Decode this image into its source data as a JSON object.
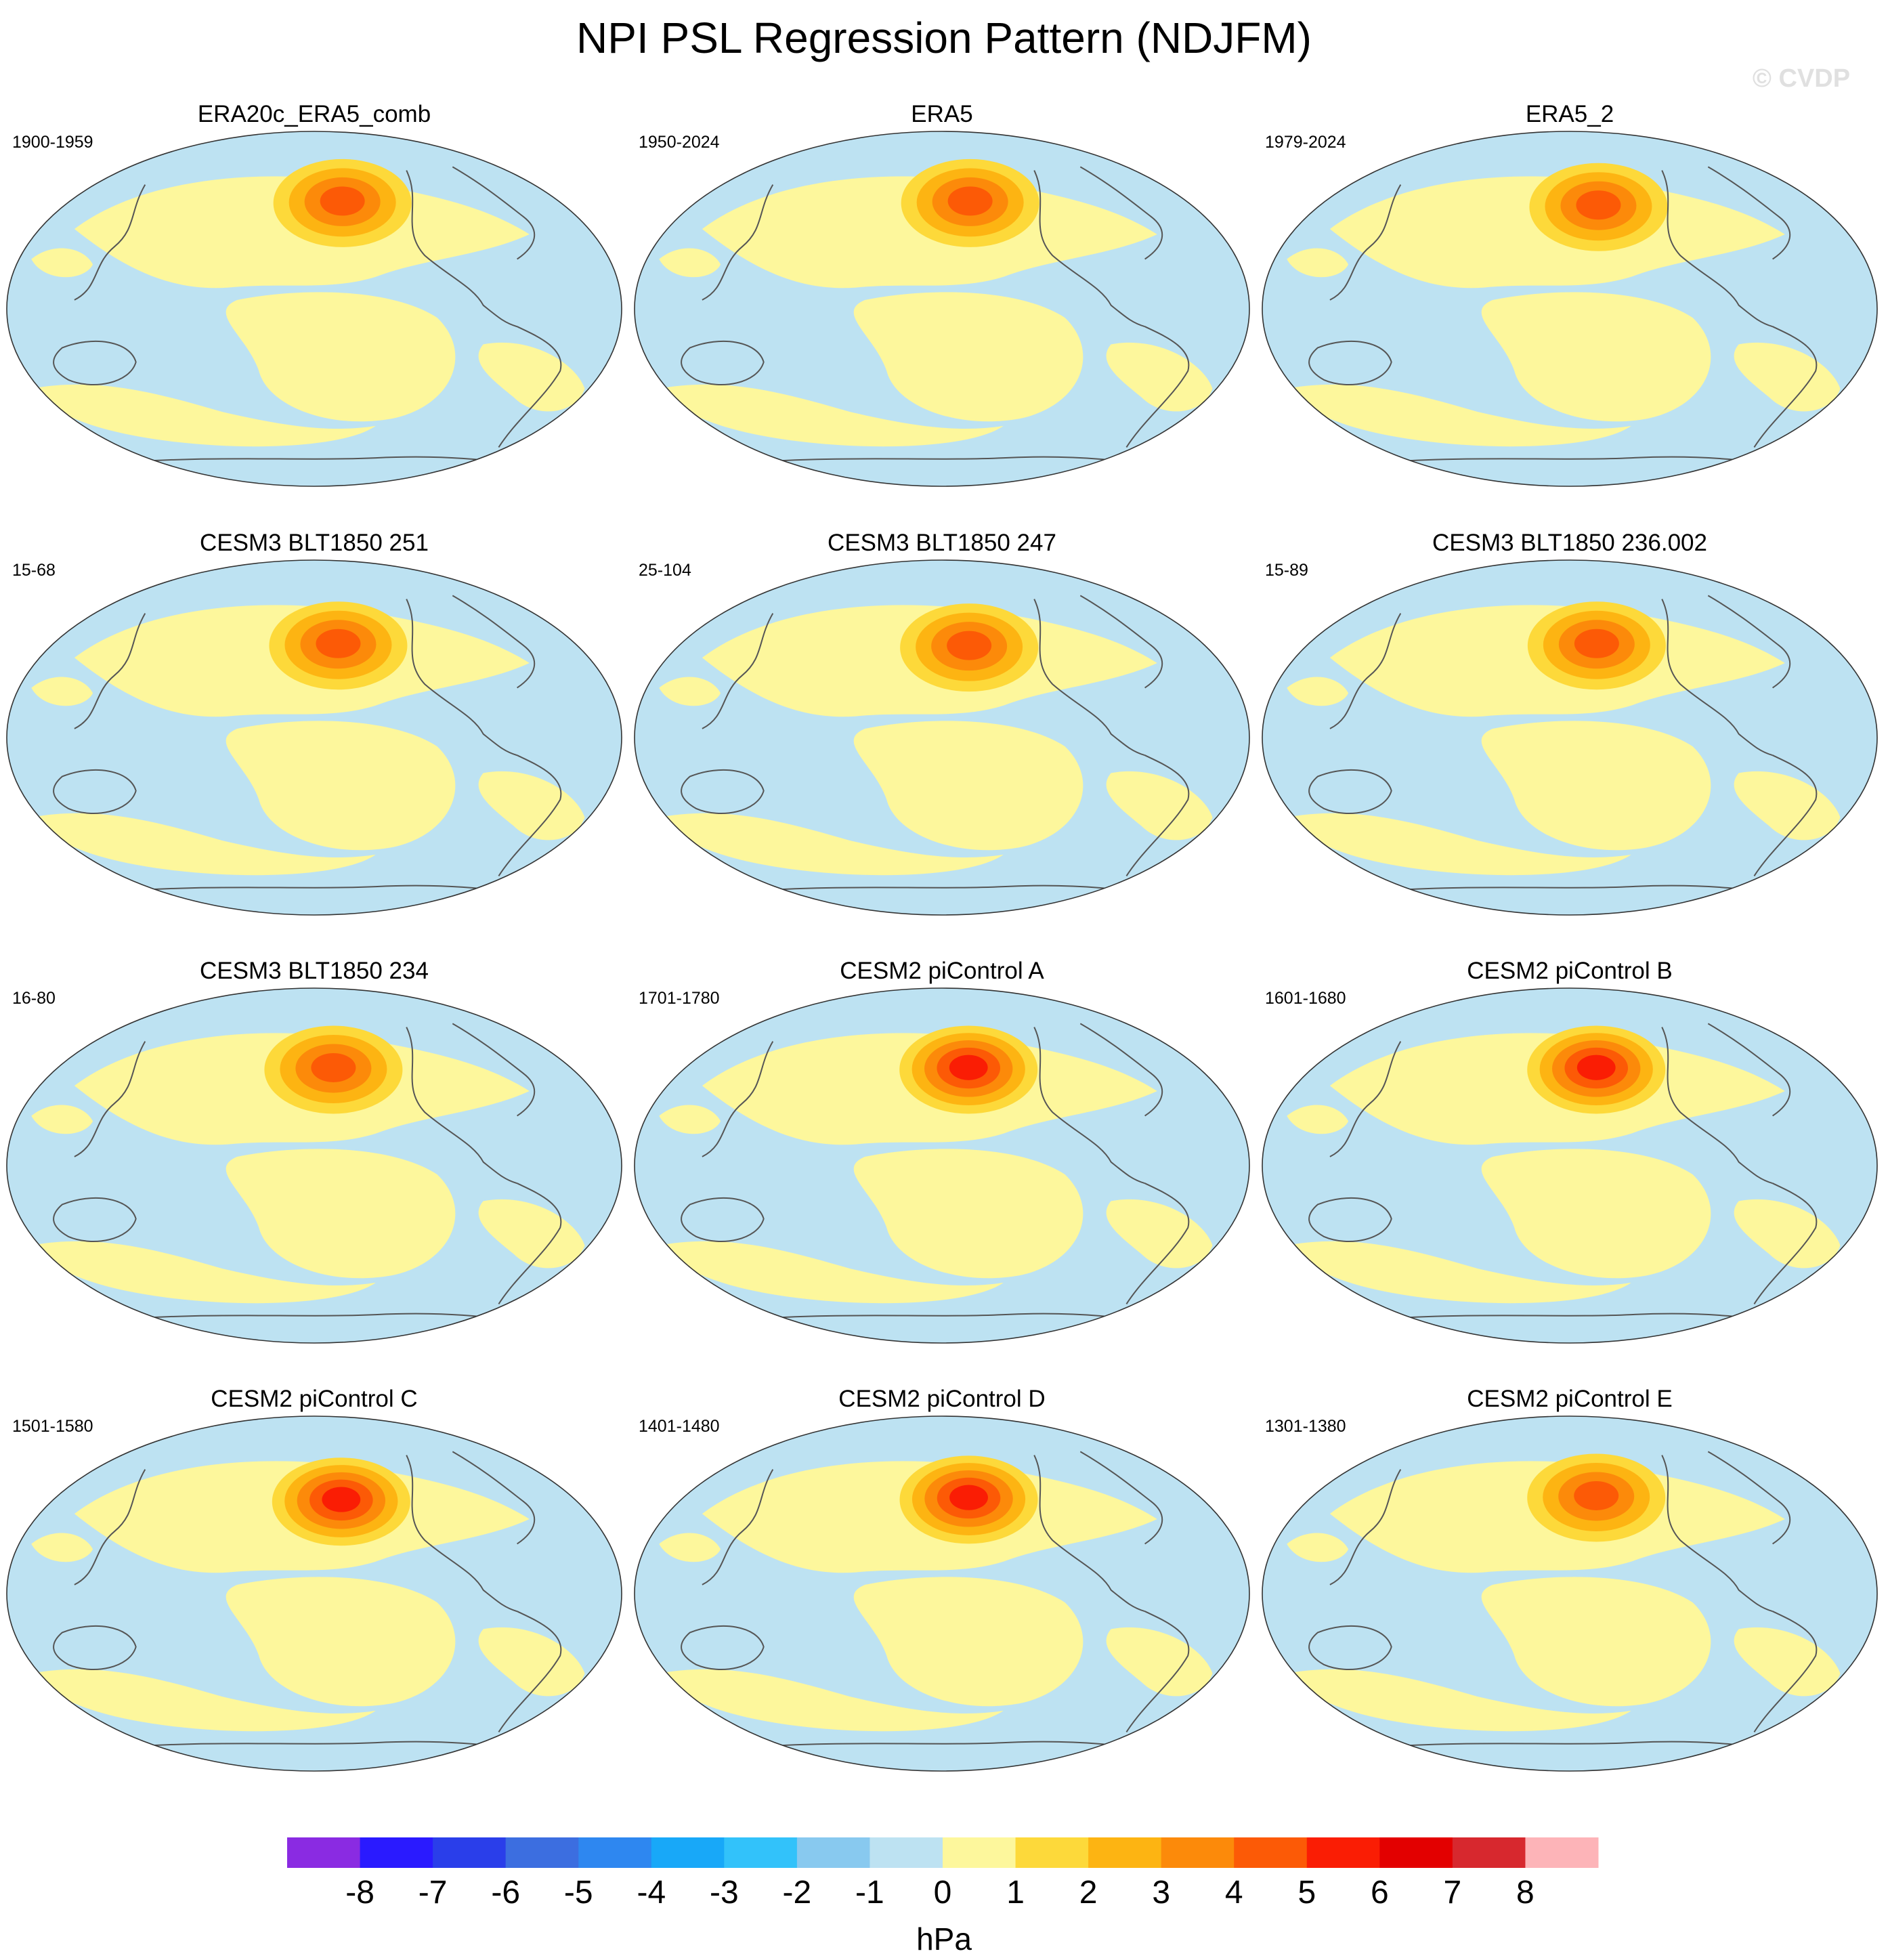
{
  "figure": {
    "title": "NPI PSL Regression Pattern (NDJFM)",
    "watermark": "© CVDP",
    "colorbar_units": "hPa"
  },
  "chart_data": {
    "type": "heatmap",
    "title": "NPI PSL Regression Pattern (NDJFM)",
    "units": "hPa",
    "levels": [
      -8,
      -7,
      -6,
      -5,
      -4,
      -3,
      -2,
      -1,
      0,
      1,
      2,
      3,
      4,
      5,
      6,
      7,
      8
    ],
    "colors": [
      "#8a2be2",
      "#2a1aff",
      "#2a3eea",
      "#3c6ee0",
      "#2e87f0",
      "#18a8f8",
      "#32c2fa",
      "#88c9ef",
      "#bde2f2",
      "#fdf79c",
      "#fdd93a",
      "#fdb412",
      "#fc8a0a",
      "#fc5a06",
      "#fa1d04",
      "#e30000",
      "#d7282e",
      "#fdb4b8"
    ],
    "panels": [
      {
        "title": "ERA20c_ERA5_comb",
        "period": "1900-1959",
        "center": {
          "lon": -158,
          "lat": 55
        },
        "max_hPa": 4
      },
      {
        "title": "ERA5",
        "period": "1950-2024",
        "center": {
          "lon": -158,
          "lat": 55
        },
        "max_hPa": 4
      },
      {
        "title": "ERA5_2",
        "period": "1979-2024",
        "center": {
          "lon": -158,
          "lat": 53
        },
        "max_hPa": 4
      },
      {
        "title": "CESM3 BLT1850 251",
        "period": "15-68",
        "center": {
          "lon": -162,
          "lat": 48
        },
        "max_hPa": 4
      },
      {
        "title": "CESM3 BLT1850 247",
        "period": "25-104",
        "center": {
          "lon": -160,
          "lat": 47
        },
        "max_hPa": 4
      },
      {
        "title": "CESM3 BLT1850 236.002",
        "period": "15-89",
        "center": {
          "lon": -160,
          "lat": 48
        },
        "max_hPa": 4
      },
      {
        "title": "CESM3 BLT1850 234",
        "period": "16-80",
        "center": {
          "lon": -165,
          "lat": 50
        },
        "max_hPa": 4
      },
      {
        "title": "CESM2 piControl A",
        "period": "1701-1780",
        "center": {
          "lon": -160,
          "lat": 50
        },
        "max_hPa": 5
      },
      {
        "title": "CESM2 piControl B",
        "period": "1601-1680",
        "center": {
          "lon": -160,
          "lat": 50
        },
        "max_hPa": 5
      },
      {
        "title": "CESM2 piControl C",
        "period": "1501-1580",
        "center": {
          "lon": -160,
          "lat": 48
        },
        "max_hPa": 5
      },
      {
        "title": "CESM2 piControl D",
        "period": "1401-1480",
        "center": {
          "lon": -160,
          "lat": 49
        },
        "max_hPa": 5
      },
      {
        "title": "CESM2 piControl E",
        "period": "1301-1380",
        "center": {
          "lon": -160,
          "lat": 50
        },
        "max_hPa": 4
      }
    ]
  }
}
